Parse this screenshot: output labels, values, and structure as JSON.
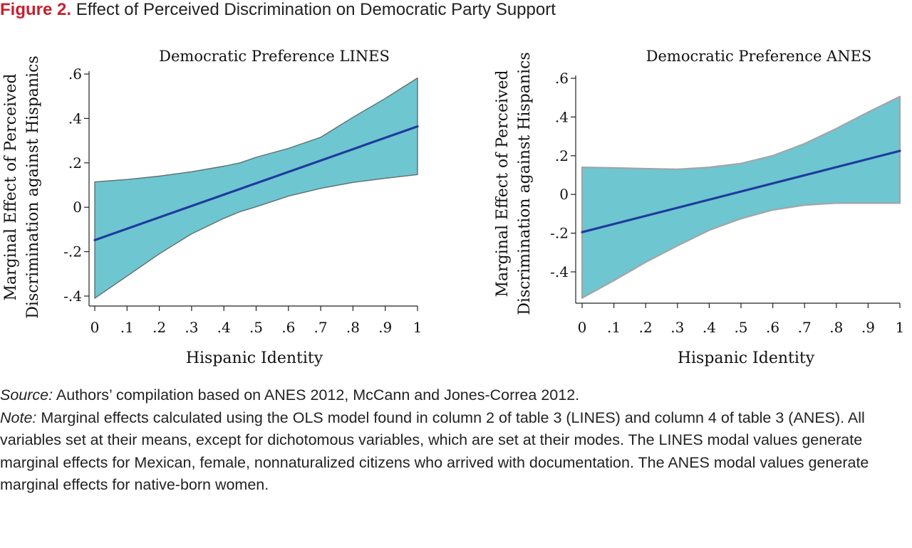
{
  "figure": {
    "label": "Figure 2.",
    "title": "Effect of Perceived Discrimination on Democratic Party Support"
  },
  "colors": {
    "figure_label": "#c8202e",
    "band_fill": "#6ec6d0",
    "line": "#1f3b9e",
    "band_edge_left": "#5f6f70",
    "band_edge_right": "#a0a6a8"
  },
  "chart_data": [
    {
      "type": "line",
      "title": "Democratic Preference LINES",
      "xlabel": "Hispanic Identity",
      "ylabel_lines": [
        "Marginal Effect of Perceived",
        "Discrimination against Hispanics"
      ],
      "x_ticks": [
        0,
        0.1,
        0.2,
        0.3,
        0.4,
        0.5,
        0.6,
        0.7,
        0.8,
        0.9,
        1
      ],
      "x_tick_labels": [
        "0",
        ".1",
        ".2",
        ".3",
        ".4",
        ".5",
        ".6",
        ".7",
        ".8",
        ".9",
        "1"
      ],
      "y_ticks": [
        -0.4,
        -0.2,
        0,
        0.2,
        0.4,
        0.6
      ],
      "y_tick_labels": [
        "-.4",
        "-.2",
        "0",
        ".2",
        ".4",
        ".6"
      ],
      "xlim": [
        0,
        1
      ],
      "ylim": [
        -0.43,
        0.62
      ],
      "grid": false,
      "legend": "none",
      "series": [
        {
          "x": [
            0,
            1
          ],
          "y": [
            -0.148,
            0.364
          ]
        }
      ],
      "ci_band": {
        "x": [
          0,
          0.1,
          0.2,
          0.3,
          0.4,
          0.45,
          0.5,
          0.6,
          0.7,
          0.8,
          0.9,
          1
        ],
        "upper": [
          0.114,
          0.125,
          0.14,
          0.16,
          0.185,
          0.2,
          0.225,
          0.265,
          0.315,
          0.405,
          0.49,
          0.582
        ],
        "lower": [
          -0.41,
          -0.31,
          -0.21,
          -0.12,
          -0.05,
          -0.02,
          0.002,
          0.05,
          0.085,
          0.112,
          0.13,
          0.147
        ]
      }
    },
    {
      "type": "line",
      "title": "Democratic Preference ANES",
      "xlabel": "Hispanic Identity",
      "ylabel_lines": [
        "Marginal Effect of Perceived",
        "Discrimination against Hispanics"
      ],
      "x_ticks": [
        0,
        0.1,
        0.2,
        0.3,
        0.4,
        0.5,
        0.6,
        0.7,
        0.8,
        0.9,
        1
      ],
      "x_tick_labels": [
        "0",
        ".1",
        ".2",
        ".3",
        ".4",
        ".5",
        ".6",
        ".7",
        ".8",
        ".9",
        "1"
      ],
      "y_ticks": [
        -0.4,
        -0.2,
        0,
        0.2,
        0.4,
        0.6
      ],
      "y_tick_labels": [
        "-.4",
        "-.2",
        "0",
        ".2",
        ".4",
        ".6"
      ],
      "xlim": [
        0,
        1
      ],
      "ylim": [
        -0.55,
        0.64
      ],
      "grid": false,
      "legend": "none",
      "series": [
        {
          "x": [
            0,
            1
          ],
          "y": [
            -0.195,
            0.225
          ]
        }
      ],
      "ci_band": {
        "x": [
          0,
          0.1,
          0.2,
          0.3,
          0.4,
          0.5,
          0.6,
          0.7,
          0.8,
          0.9,
          1
        ],
        "upper": [
          0.14,
          0.137,
          0.133,
          0.13,
          0.14,
          0.16,
          0.2,
          0.262,
          0.34,
          0.425,
          0.505
        ],
        "lower": [
          -0.535,
          -0.445,
          -0.35,
          -0.265,
          -0.185,
          -0.125,
          -0.08,
          -0.055,
          -0.045,
          -0.045,
          -0.045
        ]
      }
    }
  ],
  "caption": {
    "source_label": "Source:",
    "source_text": " Authors’ compilation based on ANES 2012, McCann and Jones-Correa 2012.",
    "note_label": "Note:",
    "note_text": " Marginal effects calculated using the OLS model found in column 2 of table 3 (LINES) and col­umn 4 of table 3 (ANES). All variables set at their means, except for dichotomous variables, which are set at their modes. The LINES modal values generate marginal effects for Mexican, female, non­naturalized citizens who arrived with documentation. The ANES modal values generate marginal ef­fects for native-born women."
  }
}
